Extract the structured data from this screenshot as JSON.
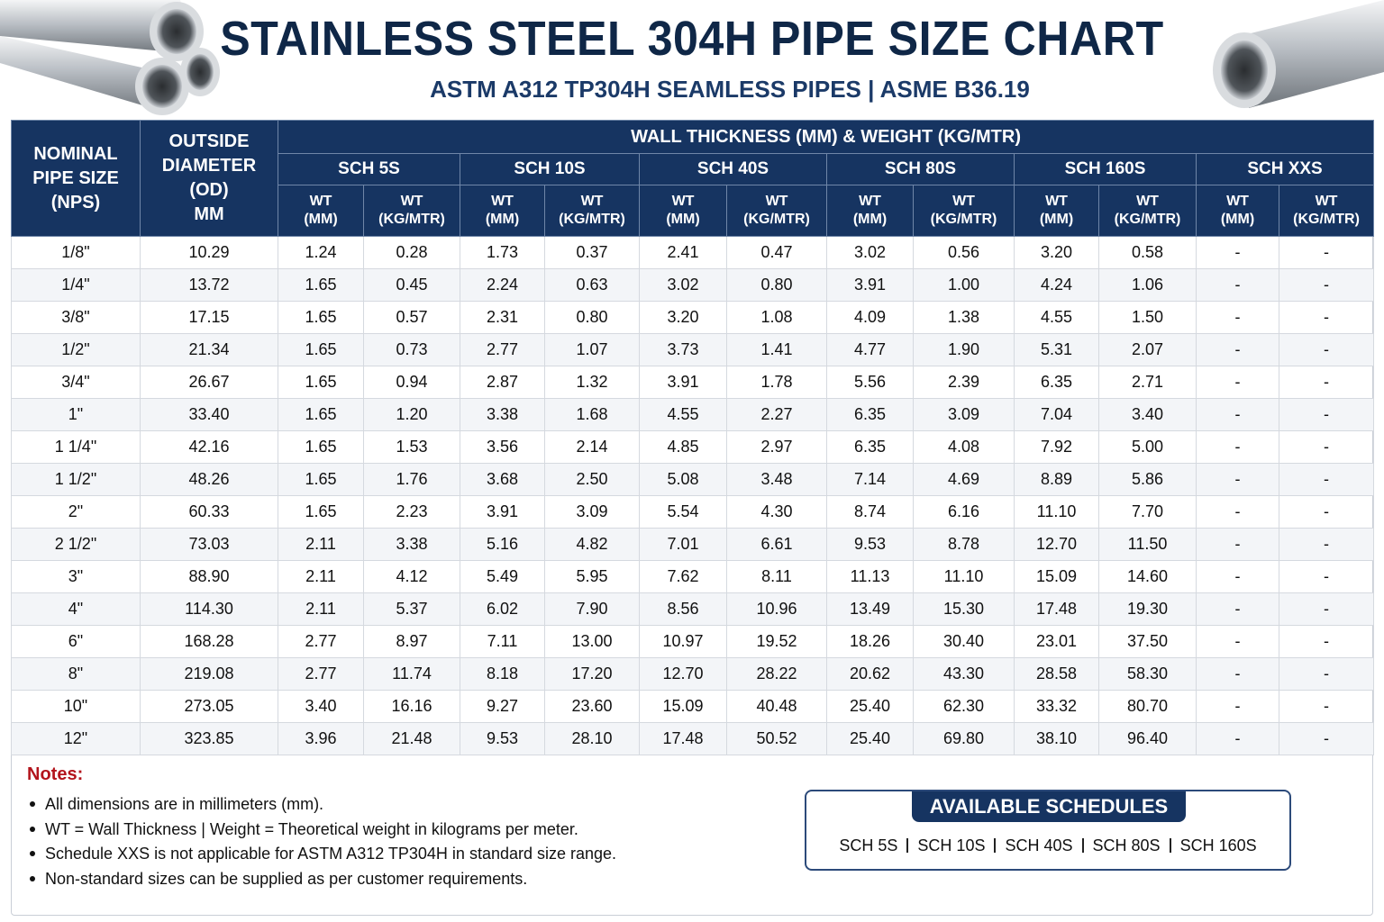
{
  "header": {
    "title": "STAINLESS STEEL 304H PIPE SIZE CHART",
    "subtitle": "ASTM A312 TP304H SEAMLESS PIPES | ASME B36.19"
  },
  "table": {
    "nps_header": "NOMINAL PIPE SIZE (NPS)",
    "od_header": "OUTSIDE DIAMETER (OD)",
    "od_unit": "MM",
    "group_header": "WALL THICKNESS (MM) & WEIGHT (KG/MTR)",
    "schedules": [
      "SCH 5S",
      "SCH 10S",
      "SCH 40S",
      "SCH 80S",
      "SCH 160S",
      "SCH XXS"
    ],
    "sub_headers": [
      "WT (MM)",
      "WT (KG/MTR)",
      "WT (MM)",
      "WT (KG/MTR)",
      "WT (MM)",
      "WT (KG/MTR)",
      "WT (MM)",
      "WT (KG/MTR)",
      "WT (MM)",
      "WT (KG/MTR)",
      "WT (MM)",
      "WT (KG/MTR)"
    ],
    "rows": [
      [
        "1/8\"",
        "10.29",
        "1.24",
        "0.28",
        "1.73",
        "0.37",
        "2.41",
        "0.47",
        "3.02",
        "0.56",
        "3.20",
        "0.58",
        "-",
        "-"
      ],
      [
        "1/4\"",
        "13.72",
        "1.65",
        "0.45",
        "2.24",
        "0.63",
        "3.02",
        "0.80",
        "3.91",
        "1.00",
        "4.24",
        "1.06",
        "-",
        "-"
      ],
      [
        "3/8\"",
        "17.15",
        "1.65",
        "0.57",
        "2.31",
        "0.80",
        "3.20",
        "1.08",
        "4.09",
        "1.38",
        "4.55",
        "1.50",
        "-",
        "-"
      ],
      [
        "1/2\"",
        "21.34",
        "1.65",
        "0.73",
        "2.77",
        "1.07",
        "3.73",
        "1.41",
        "4.77",
        "1.90",
        "5.31",
        "2.07",
        "-",
        "-"
      ],
      [
        "3/4\"",
        "26.67",
        "1.65",
        "0.94",
        "2.87",
        "1.32",
        "3.91",
        "1.78",
        "5.56",
        "2.39",
        "6.35",
        "2.71",
        "-",
        "-"
      ],
      [
        "1\"",
        "33.40",
        "1.65",
        "1.20",
        "3.38",
        "1.68",
        "4.55",
        "2.27",
        "6.35",
        "3.09",
        "7.04",
        "3.40",
        "-",
        "-"
      ],
      [
        "1 1/4\"",
        "42.16",
        "1.65",
        "1.53",
        "3.56",
        "2.14",
        "4.85",
        "2.97",
        "6.35",
        "4.08",
        "7.92",
        "5.00",
        "-",
        "-"
      ],
      [
        "1 1/2\"",
        "48.26",
        "1.65",
        "1.76",
        "3.68",
        "2.50",
        "5.08",
        "3.48",
        "7.14",
        "4.69",
        "8.89",
        "5.86",
        "-",
        "-"
      ],
      [
        "2\"",
        "60.33",
        "1.65",
        "2.23",
        "3.91",
        "3.09",
        "5.54",
        "4.30",
        "8.74",
        "6.16",
        "11.10",
        "7.70",
        "-",
        "-"
      ],
      [
        "2 1/2\"",
        "73.03",
        "2.11",
        "3.38",
        "5.16",
        "4.82",
        "7.01",
        "6.61",
        "9.53",
        "8.78",
        "12.70",
        "11.50",
        "-",
        "-"
      ],
      [
        "3\"",
        "88.90",
        "2.11",
        "4.12",
        "5.49",
        "5.95",
        "7.62",
        "8.11",
        "11.13",
        "11.10",
        "15.09",
        "14.60",
        "-",
        "-"
      ],
      [
        "4\"",
        "114.30",
        "2.11",
        "5.37",
        "6.02",
        "7.90",
        "8.56",
        "10.96",
        "13.49",
        "15.30",
        "17.48",
        "19.30",
        "-",
        "-"
      ],
      [
        "6\"",
        "168.28",
        "2.77",
        "8.97",
        "7.11",
        "13.00",
        "10.97",
        "19.52",
        "18.26",
        "30.40",
        "23.01",
        "37.50",
        "-",
        "-"
      ],
      [
        "8\"",
        "219.08",
        "2.77",
        "11.74",
        "8.18",
        "17.20",
        "12.70",
        "28.22",
        "20.62",
        "43.30",
        "28.58",
        "58.30",
        "-",
        "-"
      ],
      [
        "10\"",
        "273.05",
        "3.40",
        "16.16",
        "9.27",
        "23.60",
        "15.09",
        "40.48",
        "25.40",
        "62.30",
        "33.32",
        "80.70",
        "-",
        "-"
      ],
      [
        "12\"",
        "323.85",
        "3.96",
        "21.48",
        "9.53",
        "28.10",
        "17.48",
        "50.52",
        "25.40",
        "69.80",
        "38.10",
        "96.40",
        "-",
        "-"
      ]
    ]
  },
  "notes": {
    "title": "Notes:",
    "items": [
      "All dimensions are in millimeters (mm).",
      "WT = Wall Thickness | Weight = Theoretical weight in kilograms per meter.",
      "Schedule XXS is not applicable for ASTM A312 TP304H in standard size range.",
      "Non-standard sizes can be supplied as per customer requirements."
    ]
  },
  "available": {
    "title": "AVAILABLE SCHEDULES",
    "items": [
      "SCH 5S",
      "SCH 10S",
      "SCH 40S",
      "SCH 80S",
      "SCH 160S"
    ]
  }
}
